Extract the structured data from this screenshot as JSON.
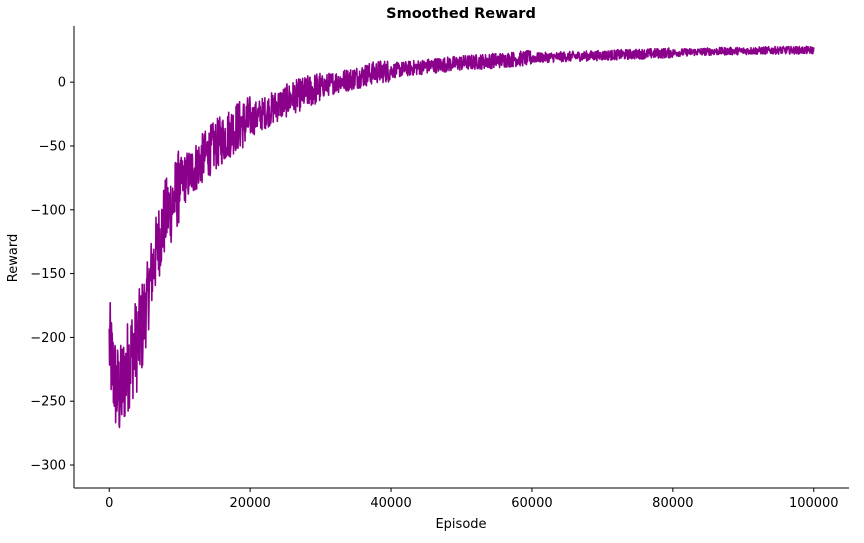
{
  "chart_data": {
    "type": "line",
    "title": "Smoothed Reward",
    "xlabel": "Episode",
    "ylabel": "Reward",
    "xlim": [
      -5000,
      105000
    ],
    "ylim": [
      -318,
      44
    ],
    "xticks": [
      0,
      20000,
      40000,
      60000,
      80000,
      100000
    ],
    "yticks": [
      0,
      -50,
      -100,
      -150,
      -200,
      -250,
      -300
    ],
    "grid": false,
    "legend": "none",
    "line_color": "#8b008b",
    "series": [
      {
        "x": [
          0,
          500,
          1000,
          1500,
          2000,
          3000,
          4000,
          5000,
          6000,
          7000,
          8000,
          9000,
          10000,
          12000,
          14000,
          16000,
          18000,
          20000,
          22000,
          24000,
          26000,
          28000,
          30000,
          32000,
          34000,
          36000,
          38000,
          40000,
          43000,
          46000,
          50000,
          55000,
          60000,
          65000,
          70000,
          75000,
          80000,
          85000,
          90000,
          95000,
          100000
        ],
        "y": [
          -205,
          -225,
          -240,
          -245,
          -235,
          -215,
          -205,
          -185,
          -150,
          -125,
          -105,
          -95,
          -80,
          -68,
          -55,
          -45,
          -35,
          -30,
          -24,
          -18,
          -12,
          -8,
          -4,
          0,
          2,
          5,
          8,
          9,
          11,
          13,
          15,
          17,
          19,
          20,
          21,
          22,
          23,
          24,
          24.5,
          25,
          25
        ]
      }
    ]
  }
}
